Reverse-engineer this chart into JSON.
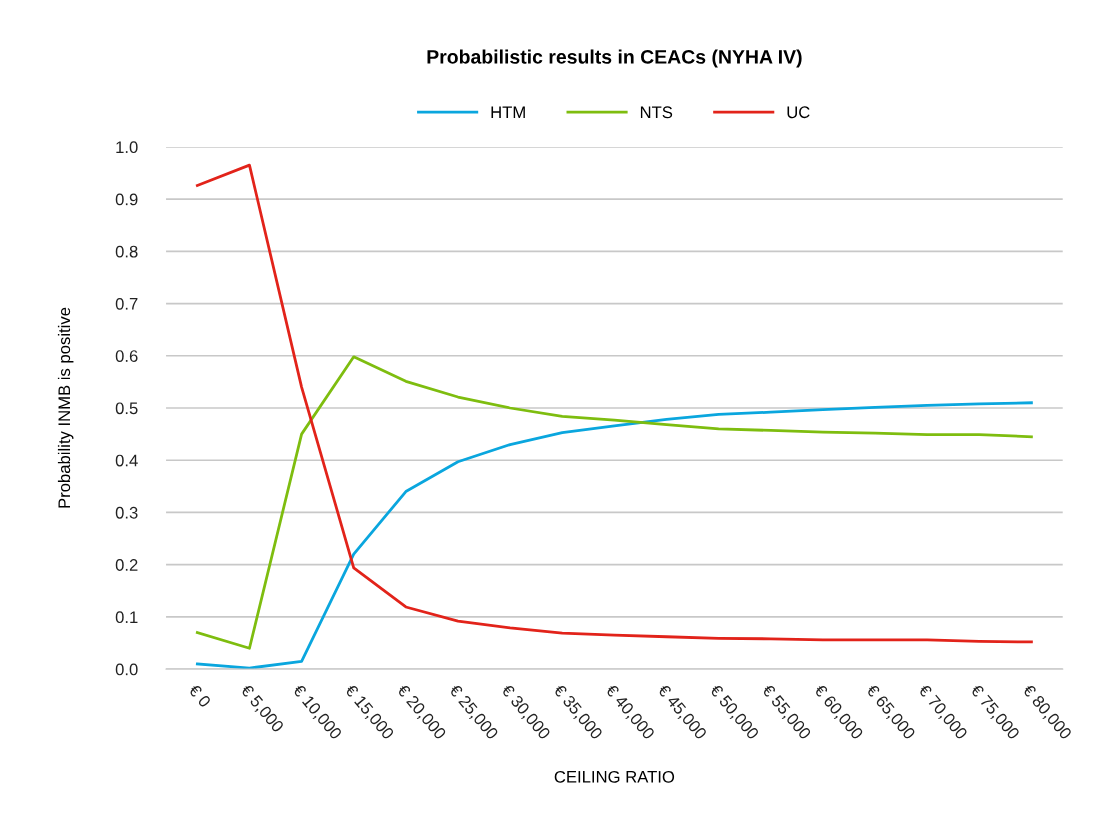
{
  "chart_data": {
    "type": "line",
    "title": "Probabilistic results in CEACs (NYHA IV)",
    "xlabel": "CEILING RATIO",
    "ylabel": "Probability INMB is positive",
    "categories": [
      "€ 0",
      "€ 5,000",
      "€ 10,000",
      "€ 15,000",
      "€ 20,000",
      "€ 25,000",
      "€ 30,000",
      "€ 35,000",
      "€ 40,000",
      "€ 45,000",
      "€ 50,000",
      "€ 55,000",
      "€ 60,000",
      "€ 65,000",
      "€ 70,000",
      "€ 75,000",
      "€ 80,000"
    ],
    "series": [
      {
        "name": "HTM",
        "color": "#0aa6de",
        "values": [
          0.01,
          0.002,
          0.015,
          0.22,
          0.34,
          0.397,
          0.43,
          0.453,
          0.466,
          0.478,
          0.488,
          0.492,
          0.497,
          0.501,
          0.505,
          0.508,
          0.51
        ]
      },
      {
        "name": "NTS",
        "color": "#7ebd0f",
        "values": [
          0.07,
          0.04,
          0.45,
          0.598,
          0.551,
          0.521,
          0.5,
          0.484,
          0.477,
          0.468,
          0.46,
          0.457,
          0.454,
          0.452,
          0.449,
          0.449,
          0.445
        ]
      },
      {
        "name": "UC",
        "color": "#e2231a",
        "values": [
          0.926,
          0.965,
          0.54,
          0.194,
          0.119,
          0.092,
          0.079,
          0.069,
          0.065,
          0.062,
          0.059,
          0.058,
          0.056,
          0.056,
          0.056,
          0.053,
          0.052
        ]
      }
    ],
    "ylim": [
      0,
      1
    ],
    "yticks": [
      {
        "value": 0,
        "label": "0.0"
      },
      {
        "value": 0.1,
        "label": "0.1"
      },
      {
        "value": 0.2,
        "label": "0.2"
      },
      {
        "value": 0.3,
        "label": "0.3"
      },
      {
        "value": 0.4,
        "label": "0.4"
      },
      {
        "value": 0.5,
        "label": "0.5"
      },
      {
        "value": 0.6,
        "label": "0.6"
      },
      {
        "value": 0.7,
        "label": "0.7"
      },
      {
        "value": 0.8,
        "label": "0.8"
      },
      {
        "value": 0.9,
        "label": "0.9"
      },
      {
        "value": 1,
        "label": "1.0"
      }
    ],
    "grid": "y",
    "legend": "top",
    "marker": "none",
    "line_style": "solid"
  }
}
